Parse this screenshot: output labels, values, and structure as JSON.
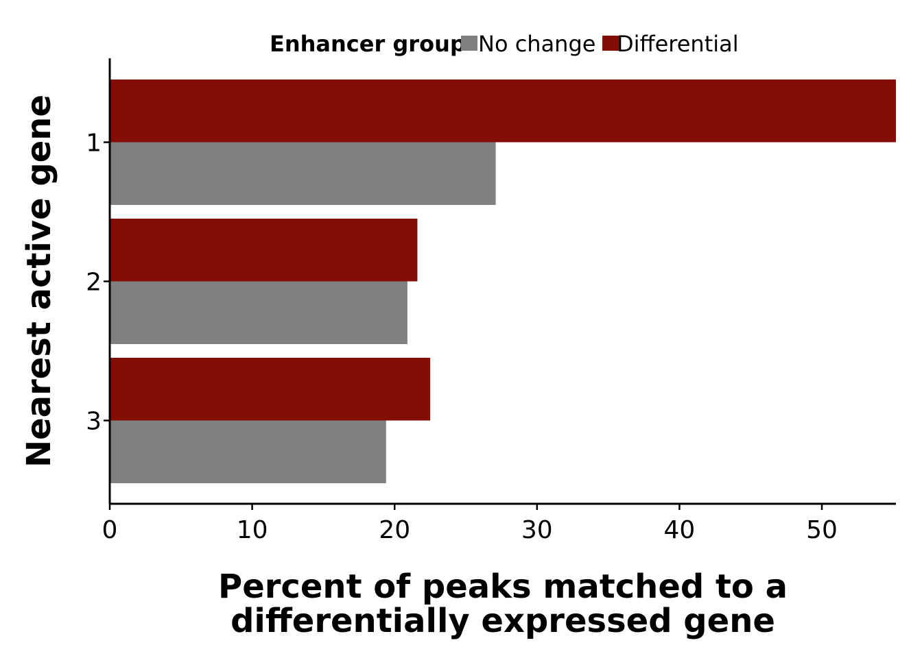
{
  "chart_data": {
    "type": "bar",
    "orientation": "horizontal",
    "categories": [
      "1",
      "2",
      "3"
    ],
    "series": [
      {
        "name": "Differential",
        "values": [
          55.2,
          21.6,
          22.5
        ],
        "color": "#840E05"
      },
      {
        "name": "No change",
        "values": [
          27.1,
          20.9,
          19.4
        ],
        "color": "#808080"
      }
    ],
    "xlabel_lines": [
      "Percent of peaks matched to a",
      "differentially expressed gene"
    ],
    "ylabel": "Nearest active gene",
    "xlim": [
      0,
      55.2
    ],
    "xticks": [
      "0",
      "10",
      "20",
      "30",
      "40",
      "50"
    ],
    "grid": false,
    "legend": {
      "title": "Enhancer group",
      "position": "top",
      "items": [
        {
          "label": "No change",
          "color": "#808080"
        },
        {
          "label": "Differential",
          "color": "#840E05"
        }
      ]
    }
  }
}
